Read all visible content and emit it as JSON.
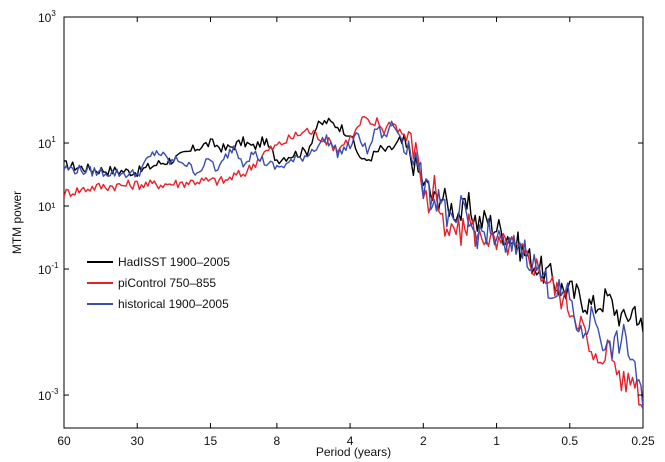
{
  "chart_data": {
    "type": "line",
    "xlabel": "Period (years)",
    "ylabel": "MTM power",
    "x_scale": "reciprocal",
    "y_scale": "log",
    "xlim": [
      60,
      0.25
    ],
    "ylim": [
      0.0003,
      1000
    ],
    "grid": false,
    "legend_position": "left-middle",
    "x_ticks": [
      {
        "value": 60,
        "label": "60"
      },
      {
        "value": 30,
        "label": "30"
      },
      {
        "value": 15,
        "label": "15"
      },
      {
        "value": 8,
        "label": "8"
      },
      {
        "value": 4,
        "label": "4"
      },
      {
        "value": 2,
        "label": "2"
      },
      {
        "value": 1,
        "label": "1"
      },
      {
        "value": 0.5,
        "label": "0.5"
      },
      {
        "value": 0.25,
        "label": "0.25"
      }
    ],
    "y_ticks": [
      {
        "value": 0.001,
        "base": "10",
        "exp": "-3"
      },
      {
        "value": 0.1,
        "base": "10",
        "exp": "-1"
      },
      {
        "value": 10,
        "base": "10",
        "exp": "1"
      },
      {
        "value": 1000,
        "base": "10",
        "exp": "3"
      }
    ],
    "y_tick_extra": [
      {
        "value": 1,
        "label": "10¹"
      }
    ],
    "series": [
      {
        "name": "HadISST 1900–2005",
        "color": "#000000",
        "x": [
          60,
          45,
          30,
          25,
          20,
          17,
          15,
          13,
          11,
          10,
          9,
          8,
          7,
          6,
          5.5,
          5,
          4.5,
          4,
          3.8,
          3.5,
          3.2,
          3,
          2.8,
          2.6,
          2.5,
          2.3,
          2.1,
          2,
          1.9,
          1.8,
          1.7,
          1.6,
          1.5,
          1.4,
          1.3,
          1.2,
          1.1,
          1,
          0.9,
          0.8,
          0.7,
          0.6,
          0.55,
          0.5,
          0.45,
          0.4,
          0.35,
          0.3,
          0.27,
          0.25
        ],
        "y": [
          4.5,
          3.8,
          3.5,
          4.6,
          6.0,
          8.5,
          10.0,
          8.0,
          10.5,
          8.5,
          11.0,
          5.5,
          6.5,
          7.5,
          18.0,
          22.0,
          19.0,
          14.0,
          8.0,
          5.0,
          6.5,
          8.0,
          7.5,
          9.0,
          11.0,
          7.0,
          3.5,
          2.5,
          1.8,
          1.2,
          1.5,
          1.1,
          0.9,
          0.75,
          1.0,
          0.55,
          0.6,
          0.45,
          0.35,
          0.22,
          0.12,
          0.075,
          0.05,
          0.045,
          0.035,
          0.025,
          0.035,
          0.015,
          0.025,
          0.01
        ]
      },
      {
        "name": "piControl 750–855",
        "color": "#e8202a",
        "x": [
          60,
          45,
          30,
          25,
          20,
          17,
          15,
          13,
          12,
          11,
          10,
          9,
          8,
          7,
          6,
          5,
          4.5,
          4,
          3.8,
          3.5,
          3.3,
          3.1,
          2.9,
          2.7,
          2.5,
          2.3,
          2.1,
          2,
          1.9,
          1.8,
          1.7,
          1.6,
          1.5,
          1.4,
          1.3,
          1.2,
          1.1,
          1,
          0.9,
          0.8,
          0.7,
          0.6,
          0.5,
          0.45,
          0.4,
          0.35,
          0.3,
          0.27,
          0.25
        ],
        "y": [
          1.6,
          2.0,
          2.2,
          2.2,
          2.3,
          2.5,
          2.5,
          2.5,
          3.0,
          3.2,
          4.5,
          7.0,
          9.0,
          12.0,
          16.0,
          11.0,
          8.0,
          12.0,
          15.0,
          26.0,
          18.0,
          22.0,
          16.0,
          22.0,
          16.0,
          12.0,
          6.0,
          1.8,
          0.9,
          2.5,
          0.6,
          0.3,
          0.45,
          0.35,
          0.6,
          0.3,
          0.35,
          0.22,
          0.25,
          0.18,
          0.12,
          0.06,
          0.025,
          0.015,
          0.003,
          0.006,
          0.0015,
          0.002,
          0.0006
        ]
      },
      {
        "name": "historical 1900–2005",
        "color": "#3b4eb0",
        "x": [
          60,
          45,
          30,
          27,
          25,
          22,
          20,
          18,
          17,
          15,
          14,
          13,
          12,
          11,
          10,
          9,
          8,
          7,
          6,
          5.5,
          5,
          4.5,
          4,
          3.7,
          3.4,
          3.1,
          2.9,
          2.7,
          2.5,
          2.3,
          2.1,
          2,
          1.9,
          1.8,
          1.7,
          1.6,
          1.5,
          1.4,
          1.3,
          1.2,
          1.1,
          1,
          0.9,
          0.8,
          0.7,
          0.6,
          0.5,
          0.45,
          0.4,
          0.35,
          0.3,
          0.27,
          0.25
        ],
        "y": [
          4.0,
          3.5,
          3.2,
          5.5,
          7.5,
          5.0,
          5.5,
          4.0,
          3.5,
          5.5,
          3.5,
          6.0,
          9.0,
          5.0,
          7.0,
          5.0,
          4.0,
          5.0,
          6.5,
          9.0,
          12.0,
          7.0,
          9.0,
          14.0,
          7.0,
          18.0,
          12.0,
          20.0,
          14.0,
          9.0,
          4.5,
          2.0,
          1.5,
          1.2,
          1.6,
          0.7,
          0.4,
          0.9,
          0.5,
          0.35,
          0.4,
          0.3,
          0.2,
          0.25,
          0.12,
          0.05,
          0.035,
          0.008,
          0.02,
          0.005,
          0.008,
          0.003,
          0.0006
        ]
      }
    ]
  }
}
